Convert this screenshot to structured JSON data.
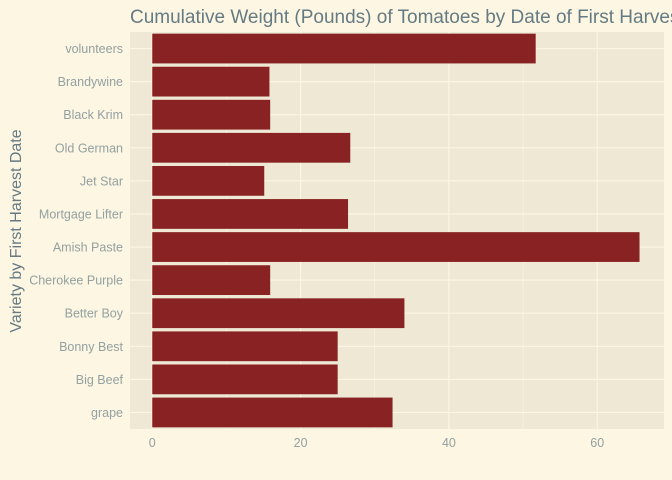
{
  "chart_data": {
    "type": "bar",
    "orientation": "horizontal",
    "title": "Cumulative Weight (Pounds) of Tomatoes by Date of First Harvest",
    "xlabel": "",
    "ylabel": "Variety by First Harvest Date",
    "categories": [
      "volunteers",
      "Brandywine",
      "Black Krim",
      "Old German",
      "Jet Star",
      "Mortgage Lifter",
      "Amish Paste",
      "Cherokee Purple",
      "Better Boy",
      "Bonny Best",
      "Big Beef",
      "grape"
    ],
    "values": [
      51.7,
      15.8,
      15.9,
      26.7,
      15.1,
      26.4,
      65.7,
      15.9,
      34.0,
      25.0,
      25.0,
      32.4
    ],
    "xlim": [
      -3,
      69
    ],
    "x_ticks": [
      0,
      20,
      40,
      60
    ],
    "grid": true,
    "legend": "none",
    "colors": {
      "bar": "#892323",
      "panel": "#EEE8D5",
      "background": "#FDF6E3",
      "grid": "#FDF6E3",
      "text": "#93A1A1",
      "title": "#657B83"
    }
  }
}
